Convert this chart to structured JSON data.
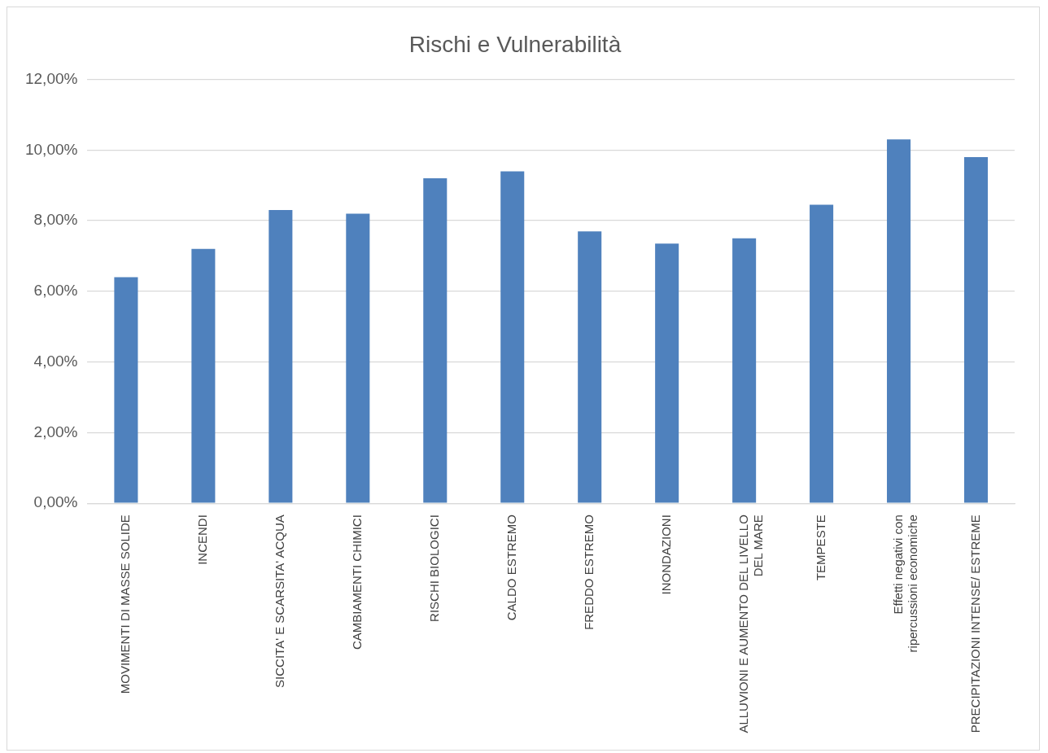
{
  "chart_data": {
    "type": "bar",
    "title": "Rischi e Vulnerabilità",
    "categories": [
      "MOVIMENTI DI MASSE SOLIDE",
      "INCENDI",
      "SICCITA' E SCARSITA' ACQUA",
      "CAMBIAMENTI CHIMICI",
      "RISCHI BIOLOGICI",
      "CALDO ESTREMO",
      "FREDDO ESTREMO",
      "INONDAZIONI",
      "ALLUVIONI E AUMENTO DEL LIVELLO DEL MARE",
      "TEMPESTE",
      "Effetti negativi con ripercussioni economiche",
      "PRECIPITAZIONI INTENSE/ ESTREME"
    ],
    "values": [
      6.4,
      7.2,
      8.3,
      8.2,
      9.2,
      9.4,
      7.7,
      7.35,
      7.5,
      8.45,
      10.3,
      9.8
    ],
    "color": "#4f81bd",
    "ylim": [
      0,
      12
    ],
    "yticks": [
      {
        "value": 0,
        "label": "0,00%"
      },
      {
        "value": 2,
        "label": "2,00%"
      },
      {
        "value": 4,
        "label": "4,00%"
      },
      {
        "value": 6,
        "label": "6,00%"
      },
      {
        "value": 8,
        "label": "8,00%"
      },
      {
        "value": 10,
        "label": "10,00%"
      },
      {
        "value": 12,
        "label": "12,00%"
      }
    ],
    "grid": "y",
    "legend": false
  }
}
